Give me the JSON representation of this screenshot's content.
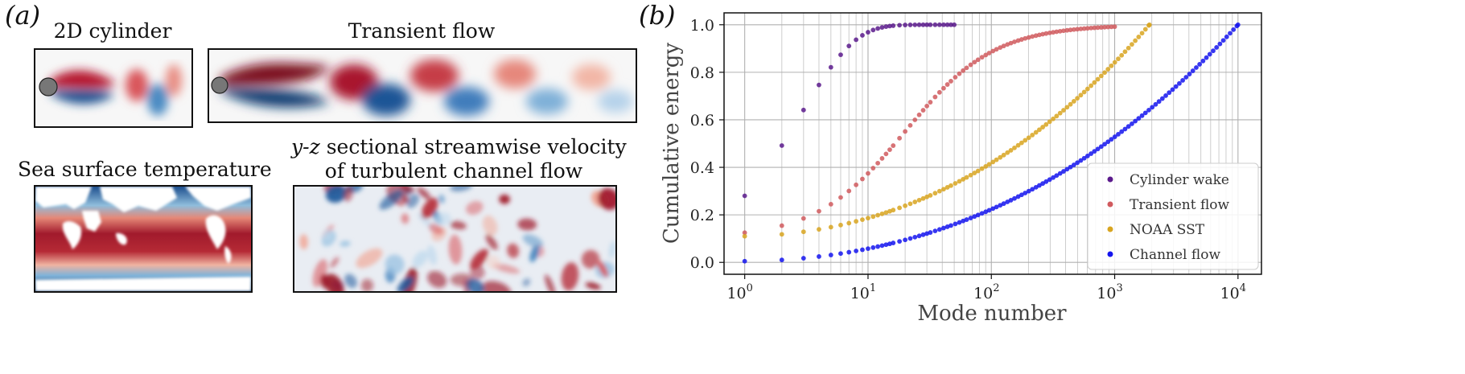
{
  "panel_a": {
    "label": "(a)",
    "titles": {
      "cylinder": "2D cylinder",
      "transient": "Transient flow",
      "sst": "Sea surface temperature",
      "channel_line1_em": "y-z",
      "channel_line1_rest": " sectional streamwise velocity",
      "channel_line2": "of turbulent channel flow"
    }
  },
  "panel_b": {
    "label": "(b)"
  },
  "colors": {
    "red": "#8b0a1b",
    "blue": "#0b3d7a",
    "mid": "#f7f7f7"
  },
  "chart_data": {
    "type": "scatter",
    "xscale": "log",
    "xlabel": "Mode number",
    "ylabel": "Cumulative energy",
    "xlim": [
      0.68,
      15500
    ],
    "ylim": [
      -0.05,
      1.05
    ],
    "xticks": [
      1,
      10,
      100,
      1000,
      10000
    ],
    "xtick_labels": [
      {
        "base": "10",
        "exp": "0"
      },
      {
        "base": "10",
        "exp": "1"
      },
      {
        "base": "10",
        "exp": "2"
      },
      {
        "base": "10",
        "exp": "3"
      },
      {
        "base": "10",
        "exp": "4"
      }
    ],
    "yticks": [
      0.0,
      0.2,
      0.4,
      0.6,
      0.8,
      1.0
    ],
    "ytick_labels": [
      "0.0",
      "0.2",
      "0.4",
      "0.6",
      "0.8",
      "1.0"
    ],
    "grid": true,
    "legend_position": "bottom-right",
    "series": [
      {
        "name": "Cylinder wake",
        "color": "#5b1a8c",
        "n_modes": 50,
        "model": "exp",
        "a": 0.28,
        "k": 0.348
      },
      {
        "name": "Transient flow",
        "color": "#d05a5e",
        "n_modes": 1000,
        "model": "logistic",
        "a": 0.125,
        "c": 3.9,
        "w": 0.363
      },
      {
        "name": "NOAA SST",
        "color": "#d8a520",
        "n_modes": 1914,
        "model": "poly",
        "a": 0.11,
        "p": 1.75
      },
      {
        "name": "Channel flow",
        "color": "#1414ee",
        "n_modes": 10000,
        "model": "poly",
        "a": 0.005,
        "p": 1.82
      }
    ]
  }
}
